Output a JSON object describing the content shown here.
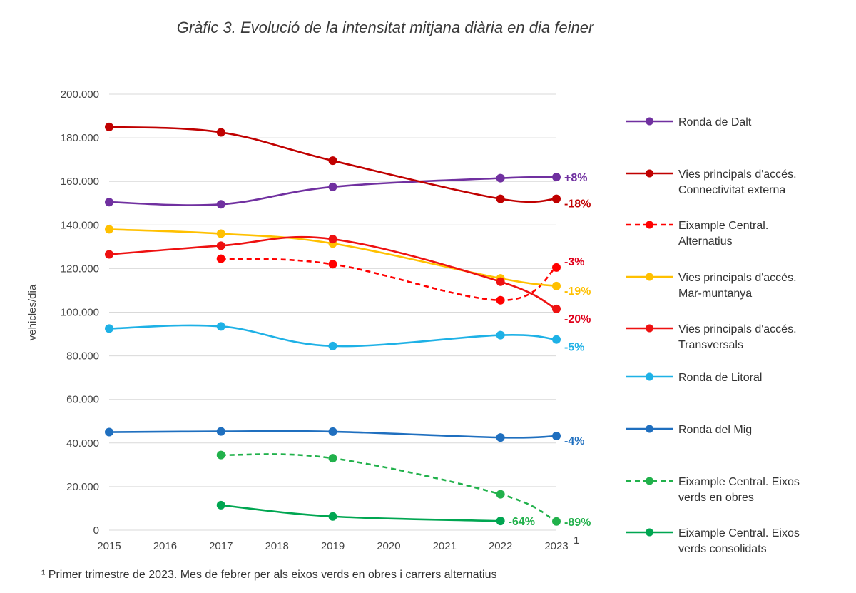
{
  "title": "Gràfic 3. Evolució de la intensitat mitjana diària en dia feiner",
  "footnote": "¹ Primer trimestre de 2023. Mes de febrer per als eixos verds en obres i carrers alternatius",
  "chart_data": {
    "type": "line",
    "title": "Gràfic 3. Evolució de la intensitat mitjana diària en dia feiner",
    "xlabel": "",
    "ylabel": "vehicles/dia",
    "ylim": [
      0,
      200000
    ],
    "xlim": [
      2015,
      2023
    ],
    "x_ticks": [
      "2015",
      "2016",
      "2017",
      "2018",
      "2019",
      "2020",
      "2021",
      "2022",
      "2023"
    ],
    "x_last_superscript": "1",
    "y_ticks": [
      "0",
      "20.000",
      "40.000",
      "60.000",
      "80.000",
      "100.000",
      "120.000",
      "140.000",
      "160.000",
      "180.000",
      "200.000"
    ],
    "grid": true,
    "legend_position": "right",
    "series": [
      {
        "name": "Ronda de Dalt",
        "legend_lines": [
          "Ronda de Dalt"
        ],
        "color": "#7030A0",
        "dashed": false,
        "x": [
          2015,
          2017,
          2019,
          2022,
          2023
        ],
        "values": [
          150500,
          149500,
          157500,
          161500,
          162000
        ],
        "end_label": "+8%",
        "end_label_color": "#7030A0"
      },
      {
        "name": "Vies principals d'accés. Connectivitat externa",
        "legend_lines": [
          "Vies principals d'accés.",
          "Connectivitat externa"
        ],
        "color": "#C00000",
        "dashed": false,
        "x": [
          2015,
          2017,
          2019,
          2022,
          2023
        ],
        "values": [
          185000,
          182500,
          169500,
          152000,
          152000
        ],
        "end_label": "-18%",
        "end_label_color": "#C00000"
      },
      {
        "name": "Eixample Central. Alternatius",
        "legend_lines": [
          "Eixample Central.",
          "Alternatius"
        ],
        "color": "#FF0000",
        "dashed": true,
        "x": [
          2017,
          2019,
          2022,
          2023
        ],
        "values": [
          124500,
          122000,
          105500,
          120500
        ],
        "end_label": "-3%",
        "end_label_color": "#E0001B"
      },
      {
        "name": "Vies principals d'accés. Mar-muntanya",
        "legend_lines": [
          "Vies principals d'accés.",
          "Mar-muntanya"
        ],
        "color": "#FFC000",
        "dashed": false,
        "x": [
          2015,
          2017,
          2019,
          2022,
          2023
        ],
        "values": [
          138000,
          136000,
          131500,
          115500,
          112000
        ],
        "end_label": "-19%",
        "end_label_color": "#FFC000"
      },
      {
        "name": "Vies principals d'accés. Transversals",
        "legend_lines": [
          "Vies principals d'accés.",
          "Transversals"
        ],
        "color": "#EE1111",
        "dashed": false,
        "x": [
          2015,
          2017,
          2019,
          2022,
          2023
        ],
        "values": [
          126500,
          130500,
          133500,
          114000,
          101500
        ],
        "end_label": "-20%",
        "end_label_color": "#E0001B"
      },
      {
        "name": "Ronda de Litoral",
        "legend_lines": [
          "Ronda de Litoral"
        ],
        "color": "#1EB1E6",
        "dashed": false,
        "x": [
          2015,
          2017,
          2019,
          2022,
          2023
        ],
        "values": [
          92500,
          93500,
          84500,
          89500,
          87500
        ],
        "end_label": "-5%",
        "end_label_color": "#1EB1E6"
      },
      {
        "name": "Ronda del Mig",
        "legend_lines": [
          "Ronda del Mig"
        ],
        "color": "#1F6FBF",
        "dashed": false,
        "x": [
          2015,
          2017,
          2019,
          2022,
          2023
        ],
        "values": [
          45000,
          45300,
          45200,
          42500,
          43200
        ],
        "end_label": "-4%",
        "end_label_color": "#1F6FBF"
      },
      {
        "name": "Eixample Central. Eixos verds en obres",
        "legend_lines": [
          "Eixample Central. Eixos",
          "verds en obres"
        ],
        "color": "#21B14B",
        "dashed": true,
        "x": [
          2017,
          2019,
          2022,
          2023
        ],
        "values": [
          34500,
          33000,
          16500,
          4000
        ],
        "end_label": "-89%",
        "end_label_color": "#21B14B"
      },
      {
        "name": "Eixample Central. Eixos verds consolidats",
        "legend_lines": [
          "Eixample Central. Eixos",
          "verds consolidats"
        ],
        "color": "#00A651",
        "dashed": false,
        "x": [
          2017,
          2019,
          2022
        ],
        "values": [
          11500,
          6300,
          4200
        ],
        "end_label": "-64%",
        "end_label_color": "#21B14B"
      }
    ]
  }
}
